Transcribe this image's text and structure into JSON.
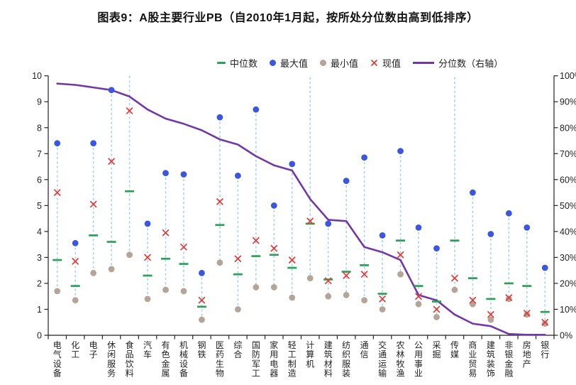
{
  "title": "图表9：A股主要行业PB（自2010年1月起，按所处分位数由高到低排序）",
  "colors": {
    "median": "#2ba157",
    "max": "#3b57e0",
    "min": "#b5a498",
    "current": "#e03c38",
    "percentile": "#7238a8",
    "range_line": "#a6d3f2",
    "axis": "#222222"
  },
  "legend": {
    "items": [
      {
        "label": "中位数",
        "marker": "dash",
        "color_key": "median"
      },
      {
        "label": "最大值",
        "marker": "dot",
        "color_key": "max"
      },
      {
        "label": "最小值",
        "marker": "dot",
        "color_key": "min"
      },
      {
        "label": "现值",
        "marker": "x",
        "color_key": "current"
      },
      {
        "label": "分位数（右轴）",
        "marker": "line",
        "color_key": "percentile"
      }
    ]
  },
  "chart_data": {
    "type": "scatter",
    "subtype": "range-dot plot with percentile line on right axis",
    "title": "图表9：A股主要行业PB（自2010年1月起，按所处分位数由高到低排序）",
    "categories": [
      "电气设备",
      "化工",
      "电子",
      "休闲服务",
      "食品饮料",
      "汽车",
      "有色金属",
      "机械设备",
      "钢铁",
      "医药生物",
      "综合",
      "国防军工",
      "家用电器",
      "轻工制造",
      "计算机",
      "建筑材料",
      "纺织服装",
      "通信",
      "交通运输",
      "农林牧渔",
      "公用事业",
      "采掘",
      "传媒",
      "商业贸易",
      "建筑装饰",
      "非银金融",
      "房地产",
      "银行"
    ],
    "series": [
      {
        "name": "中位数",
        "marker": "dash",
        "values": [
          2.9,
          1.9,
          3.85,
          3.6,
          5.55,
          2.3,
          2.95,
          2.75,
          1.1,
          4.25,
          2.35,
          3.05,
          3.1,
          2.6,
          4.3,
          2.15,
          2.45,
          2.7,
          1.6,
          3.65,
          1.9,
          1.3,
          3.65,
          2.2,
          1.4,
          2.0,
          1.9,
          0.9
        ]
      },
      {
        "name": "最大值",
        "marker": "dot",
        "values": [
          7.4,
          3.55,
          7.4,
          9.45,
          10.0,
          4.3,
          6.25,
          6.2,
          2.4,
          8.4,
          6.15,
          8.7,
          5.0,
          6.6,
          9.95,
          4.3,
          5.95,
          6.85,
          3.85,
          7.1,
          4.15,
          3.35,
          9.95,
          5.5,
          3.9,
          4.7,
          4.15,
          2.6
        ]
      },
      {
        "name": "最小值",
        "marker": "dot",
        "values": [
          1.7,
          1.35,
          2.4,
          2.55,
          3.1,
          1.4,
          1.75,
          1.7,
          0.6,
          2.8,
          1.0,
          1.85,
          1.85,
          1.45,
          2.2,
          1.5,
          1.55,
          1.35,
          1.0,
          2.35,
          1.2,
          0.7,
          1.75,
          1.2,
          0.6,
          1.4,
          0.8,
          0.45
        ]
      },
      {
        "name": "现值",
        "marker": "x",
        "values": [
          5.5,
          2.85,
          5.05,
          6.7,
          8.65,
          3.0,
          3.95,
          3.4,
          1.35,
          5.15,
          2.95,
          3.65,
          3.35,
          2.9,
          4.4,
          2.1,
          2.3,
          2.35,
          1.4,
          3.1,
          1.5,
          1.0,
          2.2,
          1.35,
          0.8,
          1.45,
          0.85,
          0.5
        ]
      },
      {
        "name": "分位数（右轴）",
        "marker": "line",
        "axis": "right",
        "unit": "%",
        "values": [
          97,
          96.5,
          95.5,
          94.5,
          92,
          87,
          83.5,
          81.5,
          79,
          75.5,
          73.5,
          69,
          65.5,
          63.5,
          52.5,
          44.5,
          44,
          34,
          32,
          29,
          15.5,
          13.5,
          8,
          4.5,
          3.5,
          0.5,
          0.2,
          0.2
        ]
      }
    ],
    "max_dot_hidden_categories": [
      "食品饮料",
      "计算机",
      "传媒"
    ],
    "left_axis": {
      "min": 0,
      "max": 10,
      "ticks": [
        0,
        1,
        2,
        3,
        4,
        5,
        6,
        7,
        8,
        9,
        10
      ]
    },
    "right_axis": {
      "min": 0,
      "max": 100,
      "tick_labels": [
        "0%",
        "10%",
        "20%",
        "30%",
        "40%",
        "50%",
        "60%",
        "70%",
        "80%",
        "90%",
        "100%"
      ]
    },
    "grid": false,
    "legend_position": "top-center"
  }
}
